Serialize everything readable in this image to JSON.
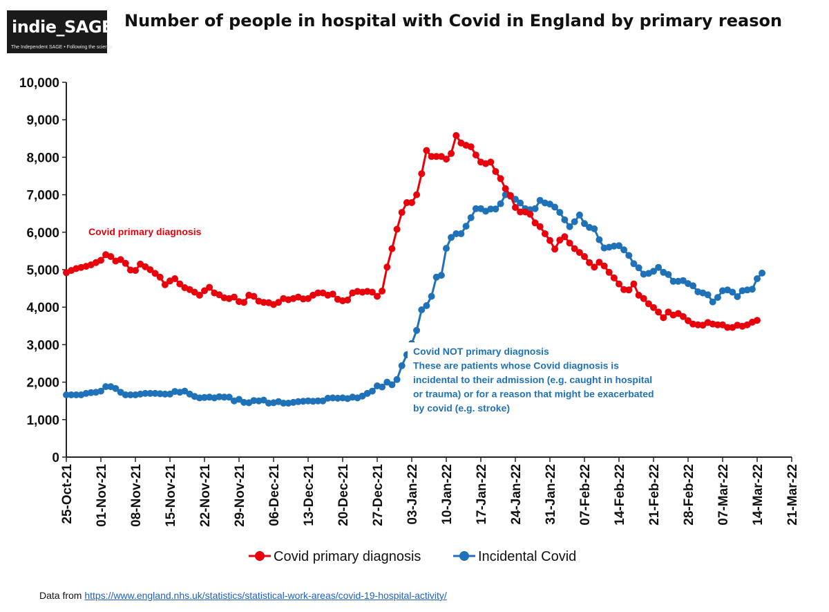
{
  "logo": {
    "text": "indie_SAGE",
    "tagline": "The Independent SAGE • Following the science"
  },
  "source": {
    "prefix": "Data from ",
    "url": "https://www.england.nhs.uk/statistics/statistical-work-areas/covid-19-hospital-activity/"
  },
  "chart_data": {
    "type": "line",
    "title": "Number of people in hospital with Covid in England by primary reason",
    "xlabel": "",
    "ylabel": "",
    "ylim": [
      0,
      10000
    ],
    "yticks": [
      0,
      1000,
      2000,
      3000,
      4000,
      5000,
      6000,
      7000,
      8000,
      9000,
      10000
    ],
    "ytick_labels": [
      "0",
      "1,000",
      "2,000",
      "3,000",
      "4,000",
      "5,000",
      "6,000",
      "7,000",
      "8,000",
      "9,000",
      "10,000"
    ],
    "x_start_date": "2021-10-25",
    "xlim_days": [
      0,
      147
    ],
    "xtick_labels": [
      "25-Oct-21",
      "01-Nov-21",
      "08-Nov-21",
      "15-Nov-21",
      "22-Nov-21",
      "29-Nov-21",
      "06-Dec-21",
      "13-Dec-21",
      "20-Dec-21",
      "27-Dec-21",
      "03-Jan-22",
      "10-Jan-22",
      "17-Jan-22",
      "24-Jan-22",
      "31-Jan-22",
      "07-Feb-22",
      "14-Feb-22",
      "21-Feb-22",
      "28-Feb-22",
      "07-Mar-22",
      "14-Mar-22",
      "21-Mar-22"
    ],
    "grid": false,
    "legend_position": "bottom",
    "series": [
      {
        "name": "Covid primary diagnosis",
        "color": "#e8000b",
        "values": [
          4920,
          4980,
          5030,
          5060,
          5090,
          5130,
          5190,
          5250,
          5400,
          5350,
          5230,
          5270,
          5170,
          4990,
          4980,
          5150,
          5080,
          5000,
          4900,
          4800,
          4600,
          4700,
          4760,
          4620,
          4520,
          4470,
          4400,
          4320,
          4440,
          4530,
          4380,
          4330,
          4250,
          4230,
          4270,
          4150,
          4130,
          4320,
          4290,
          4160,
          4130,
          4120,
          4070,
          4130,
          4230,
          4200,
          4230,
          4270,
          4220,
          4230,
          4320,
          4380,
          4380,
          4320,
          4350,
          4210,
          4170,
          4190,
          4380,
          4420,
          4400,
          4420,
          4400,
          4290,
          4430,
          5070,
          5560,
          6080,
          6530,
          6790,
          6790,
          7000,
          7560,
          8180,
          8020,
          8020,
          8020,
          7950,
          8100,
          8580,
          8380,
          8320,
          8280,
          8060,
          7870,
          7830,
          7870,
          7620,
          7430,
          7160,
          6980,
          6660,
          6540,
          6540,
          6480,
          6250,
          6150,
          5960,
          5780,
          5550,
          5790,
          5880,
          5710,
          5560,
          5460,
          5350,
          5190,
          5070,
          5200,
          5100,
          4930,
          4780,
          4620,
          4470,
          4460,
          4620,
          4320,
          4230,
          4090,
          3990,
          3870,
          3720,
          3870,
          3790,
          3830,
          3750,
          3640,
          3550,
          3530,
          3520,
          3590,
          3550,
          3530,
          3530,
          3460,
          3460,
          3520,
          3490,
          3530,
          3600,
          3650
        ]
      },
      {
        "name": "Incidental Covid",
        "color": "#1f72b8",
        "values": [
          1660,
          1660,
          1660,
          1660,
          1700,
          1720,
          1730,
          1760,
          1880,
          1880,
          1830,
          1730,
          1660,
          1660,
          1660,
          1680,
          1700,
          1700,
          1700,
          1690,
          1680,
          1680,
          1750,
          1730,
          1760,
          1680,
          1620,
          1580,
          1590,
          1600,
          1580,
          1610,
          1600,
          1600,
          1500,
          1540,
          1460,
          1450,
          1510,
          1500,
          1520,
          1440,
          1450,
          1480,
          1440,
          1440,
          1460,
          1480,
          1490,
          1500,
          1490,
          1500,
          1500,
          1570,
          1580,
          1570,
          1580,
          1560,
          1600,
          1580,
          1630,
          1700,
          1760,
          1900,
          1870,
          2000,
          1930,
          2070,
          2440,
          2730,
          3030,
          3380,
          3930,
          4040,
          4290,
          4800,
          4850,
          5570,
          5860,
          5960,
          5960,
          6160,
          6390,
          6630,
          6630,
          6560,
          6620,
          6620,
          6760,
          7000,
          6960,
          6880,
          6780,
          6630,
          6600,
          6630,
          6850,
          6780,
          6750,
          6670,
          6530,
          6330,
          6150,
          6280,
          6460,
          6230,
          6130,
          6090,
          5800,
          5580,
          5600,
          5630,
          5640,
          5530,
          5380,
          5160,
          5050,
          4880,
          4900,
          4960,
          5060,
          4930,
          4870,
          4690,
          4690,
          4710,
          4630,
          4570,
          4410,
          4380,
          4330,
          4140,
          4260,
          4440,
          4460,
          4400,
          4280,
          4440,
          4460,
          4480,
          4760,
          4910
        ]
      }
    ],
    "annotations": [
      {
        "lines": [
          "Covid primary diagnosis"
        ],
        "color": "#e8000b"
      },
      {
        "lines": [
          "Covid NOT primary diagnosis",
          "These are patients whose Covid diagnosis is",
          "incidental to their admission (e.g. caught in hospital",
          "or trauma) or for a reason that might be exacerbated",
          "by covid (e.g. stroke)"
        ],
        "color": "#1f72b8"
      }
    ]
  }
}
